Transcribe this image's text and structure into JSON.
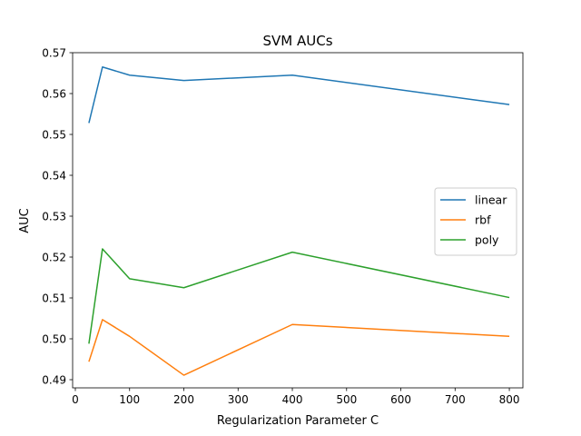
{
  "chart_data": {
    "type": "line",
    "title": "SVM AUCs",
    "xlabel": "Regularization Parameter C",
    "ylabel": "AUC",
    "x": [
      25,
      50,
      100,
      200,
      400,
      800
    ],
    "xlim": [
      -5,
      825
    ],
    "ylim": [
      0.488,
      0.57
    ],
    "xticks": [
      0,
      100,
      200,
      300,
      400,
      500,
      600,
      700,
      800
    ],
    "yticks": [
      0.49,
      0.5,
      0.51,
      0.52,
      0.53,
      0.54,
      0.55,
      0.56,
      0.57
    ],
    "grid": false,
    "legend_position": "center-right",
    "series": [
      {
        "name": "linear",
        "color": "#1f77b4",
        "values": [
          0.5528,
          0.5665,
          0.5645,
          0.5632,
          0.5645,
          0.5573
        ]
      },
      {
        "name": "rbf",
        "color": "#ff7f0e",
        "values": [
          0.4944,
          0.5047,
          0.5006,
          0.4911,
          0.5035,
          0.5006
        ]
      },
      {
        "name": "poly",
        "color": "#2ca02c",
        "values": [
          0.4988,
          0.522,
          0.5147,
          0.5125,
          0.5212,
          0.5101
        ]
      }
    ]
  }
}
